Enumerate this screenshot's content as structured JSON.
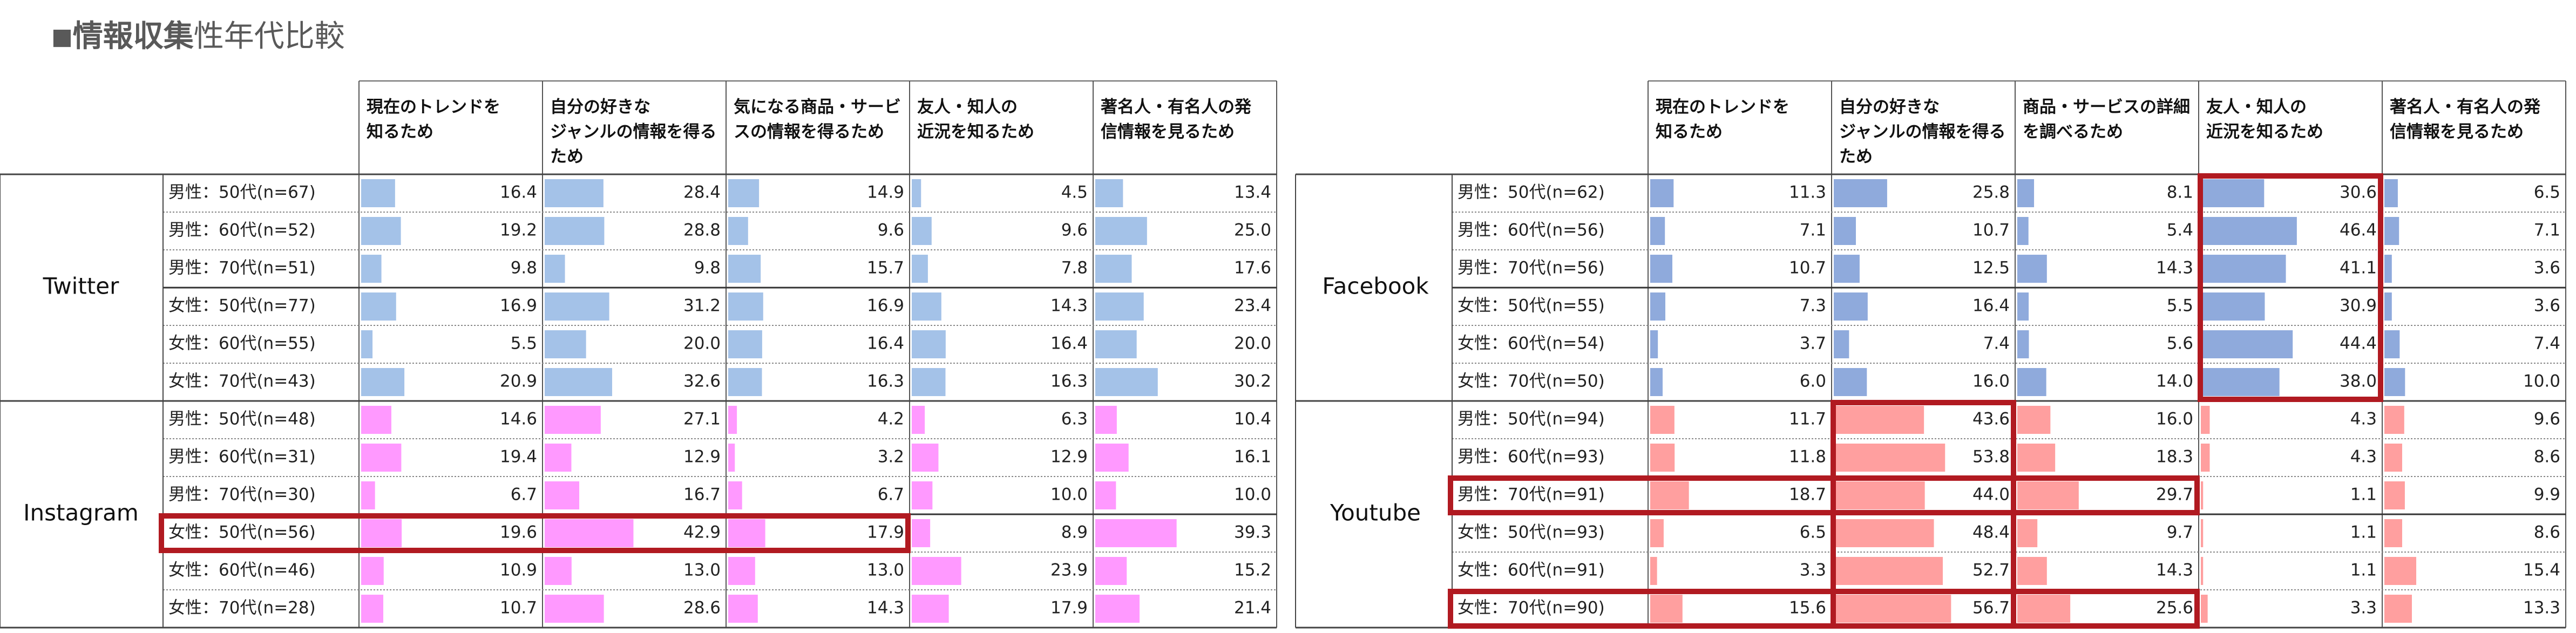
{
  "header": {
    "title_marker": "■",
    "title_bold": "情報収集",
    "title_rest": "性年代比較"
  },
  "colors": {
    "twitter": "#a4c2e8",
    "instagram": "#ff99ff",
    "facebook": "#8faadc",
    "youtube": "#ff9f9f",
    "highlight": "#b11a21"
  },
  "chart_data": [
    {
      "type": "table",
      "columns": [
        [
          "現在のトレンドを",
          "知るため"
        ],
        [
          "自分の好きな",
          "ジャンルの情報を得る",
          "ため"
        ],
        [
          "気になる商品・サービ",
          "スの情報を得るため"
        ],
        [
          "友人・知人の",
          "近況を知るため"
        ],
        [
          "著名人・有名人の発",
          "信情報を見るため"
        ]
      ],
      "groups": [
        {
          "name": "Twitter",
          "rows": [
            {
              "label": "男性：50代(n=67)",
              "values": [
                16.4,
                28.4,
                14.9,
                4.5,
                13.4
              ]
            },
            {
              "label": "男性：60代(n=52)",
              "values": [
                19.2,
                28.8,
                9.6,
                9.6,
                25.0
              ]
            },
            {
              "label": "男性：70代(n=51)",
              "values": [
                9.8,
                9.8,
                15.7,
                7.8,
                17.6
              ]
            },
            {
              "label": "女性：50代(n=77)",
              "values": [
                16.9,
                31.2,
                16.9,
                14.3,
                23.4
              ]
            },
            {
              "label": "女性：60代(n=55)",
              "values": [
                5.5,
                20.0,
                16.4,
                16.4,
                20.0
              ]
            },
            {
              "label": "女性：70代(n=43)",
              "values": [
                20.9,
                32.6,
                16.3,
                16.3,
                30.2
              ]
            }
          ]
        },
        {
          "name": "Instagram",
          "rows": [
            {
              "label": "男性：50代(n=48)",
              "values": [
                14.6,
                27.1,
                4.2,
                6.3,
                10.4
              ]
            },
            {
              "label": "男性：60代(n=31)",
              "values": [
                19.4,
                12.9,
                3.2,
                12.9,
                16.1
              ]
            },
            {
              "label": "男性：70代(n=30)",
              "values": [
                6.7,
                16.7,
                6.7,
                10.0,
                10.0
              ]
            },
            {
              "label": "女性：50代(n=56)",
              "values": [
                19.6,
                42.9,
                17.9,
                8.9,
                39.3
              ]
            },
            {
              "label": "女性：60代(n=46)",
              "values": [
                10.9,
                13.0,
                13.0,
                23.9,
                15.2
              ]
            },
            {
              "label": "女性：70代(n=28)",
              "values": [
                10.7,
                28.6,
                14.3,
                17.9,
                21.4
              ]
            }
          ]
        }
      ]
    },
    {
      "type": "table",
      "columns": [
        [
          "現在のトレンドを",
          "知るため"
        ],
        [
          "自分の好きな",
          "ジャンルの情報を得る",
          "ため"
        ],
        [
          "商品・サービスの詳細",
          "を調べるため"
        ],
        [
          "友人・知人の",
          "近況を知るため"
        ],
        [
          "著名人・有名人の発",
          "信情報を見るため"
        ]
      ],
      "groups": [
        {
          "name": "Facebook",
          "rows": [
            {
              "label": "男性：50代(n=62)",
              "values": [
                11.3,
                25.8,
                8.1,
                30.6,
                6.5
              ]
            },
            {
              "label": "男性：60代(n=56)",
              "values": [
                7.1,
                10.7,
                5.4,
                46.4,
                7.1
              ]
            },
            {
              "label": "男性：70代(n=56)",
              "values": [
                10.7,
                12.5,
                14.3,
                41.1,
                3.6
              ]
            },
            {
              "label": "女性：50代(n=55)",
              "values": [
                7.3,
                16.4,
                5.5,
                30.9,
                3.6
              ]
            },
            {
              "label": "女性：60代(n=54)",
              "values": [
                3.7,
                7.4,
                5.6,
                44.4,
                7.4
              ]
            },
            {
              "label": "女性：70代(n=50)",
              "values": [
                6.0,
                16.0,
                14.0,
                38.0,
                10.0
              ]
            }
          ]
        },
        {
          "name": "Youtube",
          "rows": [
            {
              "label": "男性：50代(n=94)",
              "values": [
                11.7,
                43.6,
                16.0,
                4.3,
                9.6
              ]
            },
            {
              "label": "男性：60代(n=93)",
              "values": [
                11.8,
                53.8,
                18.3,
                4.3,
                8.6
              ]
            },
            {
              "label": "男性：70代(n=91)",
              "values": [
                18.7,
                44.0,
                29.7,
                1.1,
                9.9
              ]
            },
            {
              "label": "女性：50代(n=93)",
              "values": [
                6.5,
                48.4,
                9.7,
                1.1,
                8.6
              ]
            },
            {
              "label": "女性：60代(n=91)",
              "values": [
                3.3,
                52.7,
                14.3,
                1.1,
                15.4
              ]
            },
            {
              "label": "女性：70代(n=90)",
              "values": [
                15.6,
                56.7,
                25.6,
                3.3,
                13.3
              ]
            }
          ]
        }
      ]
    }
  ]
}
